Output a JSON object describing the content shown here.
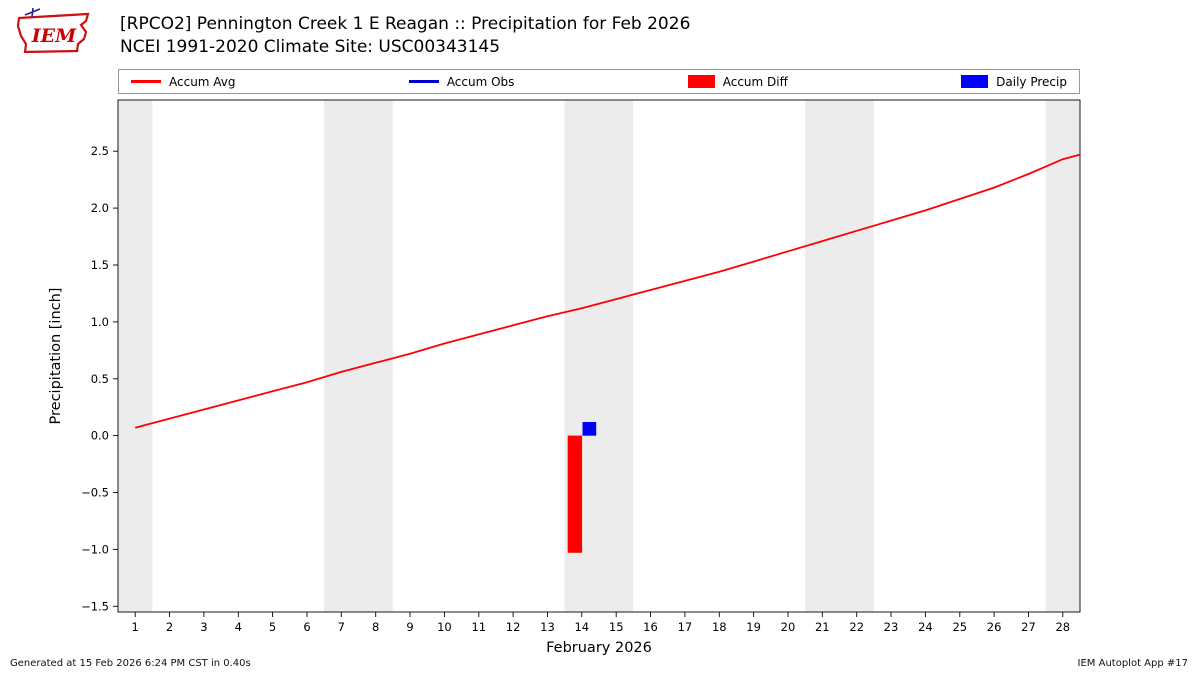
{
  "header": {
    "logo_text": "IEM"
  },
  "footer": {
    "generated": "Generated at 15 Feb 2026 6:24 PM CST in 0.40s",
    "app": "IEM Autoplot App #17"
  },
  "chart_data": {
    "type": "line",
    "title": "[RPCO2] Pennington Creek 1 E Reagan :: Precipitation for Feb 2026",
    "subtitle": "NCEI 1991-2020 Climate Site: USC00343145",
    "xlabel": "February 2026",
    "ylabel": "Precipitation [inch]",
    "xlim": [
      0.5,
      28.5
    ],
    "ylim": [
      -1.55,
      2.95
    ],
    "yticks": [
      -1.5,
      -1.0,
      -0.5,
      0.0,
      0.5,
      1.0,
      1.5,
      2.0,
      2.5
    ],
    "xticks": [
      1,
      2,
      3,
      4,
      5,
      6,
      7,
      8,
      9,
      10,
      11,
      12,
      13,
      14,
      15,
      16,
      17,
      18,
      19,
      20,
      21,
      22,
      23,
      24,
      25,
      26,
      27,
      28
    ],
    "grid": false,
    "band_color": "#ececec",
    "weekend_bands": [
      [
        0.5,
        1.5
      ],
      [
        6.5,
        8.5
      ],
      [
        13.5,
        15.5
      ],
      [
        20.5,
        22.5
      ],
      [
        27.5,
        28.5
      ]
    ],
    "legend_position": "top",
    "series": [
      {
        "name": "Accum Avg",
        "type": "line",
        "swatch": "line",
        "color": "#ff0000",
        "x": [
          1,
          2,
          3,
          4,
          5,
          6,
          7,
          8,
          9,
          10,
          11,
          12,
          13,
          14,
          15,
          16,
          17,
          18,
          19,
          20,
          21,
          22,
          23,
          24,
          25,
          26,
          27,
          28,
          28.5
        ],
        "values": [
          0.07,
          0.15,
          0.23,
          0.31,
          0.39,
          0.47,
          0.56,
          0.64,
          0.72,
          0.81,
          0.89,
          0.97,
          1.05,
          1.12,
          1.2,
          1.28,
          1.36,
          1.44,
          1.53,
          1.62,
          1.71,
          1.8,
          1.89,
          1.98,
          2.08,
          2.18,
          2.3,
          2.43,
          2.47
        ]
      },
      {
        "name": "Accum Obs",
        "type": "line",
        "swatch": "line",
        "color": "#0000cc",
        "x": [],
        "values": []
      },
      {
        "name": "Accum Diff",
        "type": "bar",
        "swatch": "rect",
        "color": "#ff0000",
        "bar_width": 0.42,
        "x": [
          13.8
        ],
        "values": [
          -1.03
        ]
      },
      {
        "name": "Daily Precip",
        "type": "bar",
        "swatch": "rect",
        "color": "#0000ff",
        "bar_width": 0.4,
        "x": [
          14.22
        ],
        "values": [
          0.12
        ]
      }
    ]
  }
}
